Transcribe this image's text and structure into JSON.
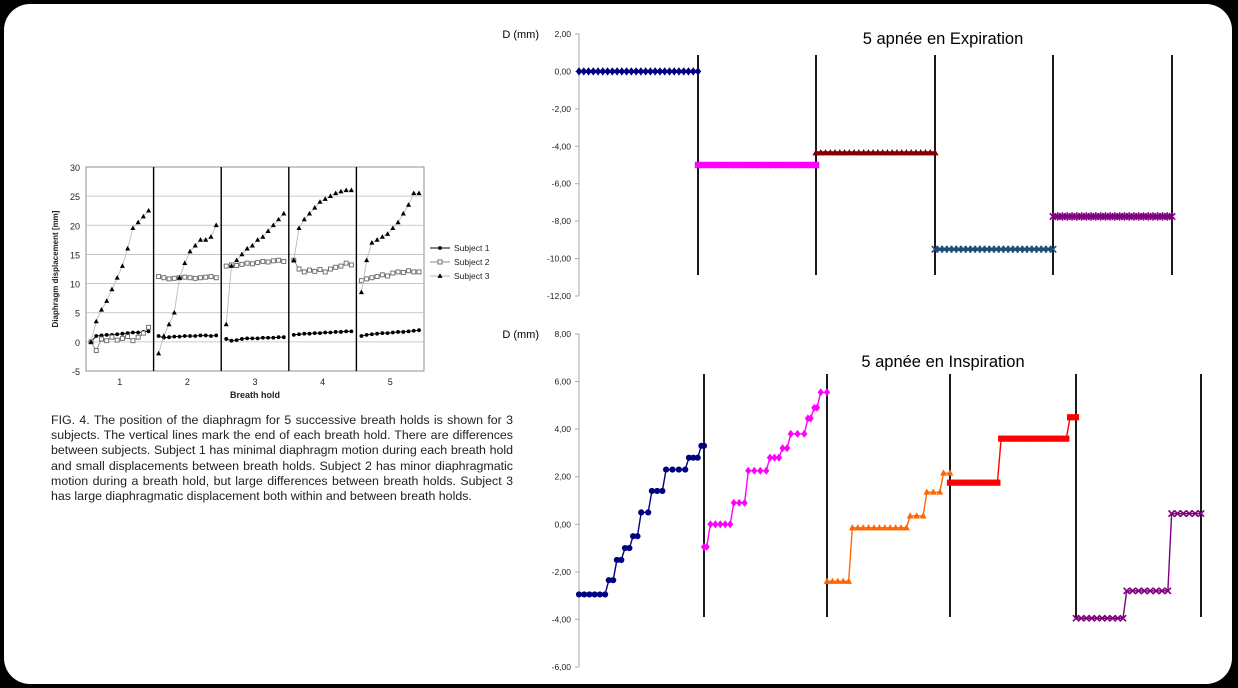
{
  "chart_data": [
    {
      "type": "scatter",
      "xlabel": "Breath hold",
      "ylabel": "Diaphragm displacement [mm]",
      "ylim": [
        -5,
        30
      ],
      "yticks": [
        "-5",
        "0",
        "5",
        "10",
        "15",
        "20",
        "25",
        "30"
      ],
      "categories": [
        "1",
        "2",
        "3",
        "4",
        "5"
      ],
      "legend_position": "right",
      "grid": true,
      "series": [
        {
          "name": "Subject 1",
          "marker": "circle",
          "values": [
            [
              0.0,
              1.0,
              1.1,
              1.2,
              1.2,
              1.3,
              1.4,
              1.5,
              1.6,
              1.6,
              1.7,
              1.8
            ],
            [
              1.0,
              0.7,
              0.8,
              0.9,
              0.9,
              1.0,
              1.0,
              1.0,
              1.1,
              1.1,
              1.0,
              1.1
            ],
            [
              0.5,
              0.2,
              0.3,
              0.5,
              0.6,
              0.6,
              0.6,
              0.7,
              0.7,
              0.7,
              0.8,
              0.8
            ],
            [
              1.2,
              1.3,
              1.4,
              1.4,
              1.5,
              1.5,
              1.6,
              1.6,
              1.7,
              1.7,
              1.8,
              1.8
            ],
            [
              1.0,
              1.2,
              1.3,
              1.4,
              1.5,
              1.5,
              1.6,
              1.7,
              1.7,
              1.8,
              1.9,
              2.0
            ]
          ]
        },
        {
          "name": "Subject 2",
          "marker": "square",
          "values": [
            [
              0.0,
              -1.5,
              0.5,
              0.2,
              0.8,
              0.3,
              0.6,
              0.9,
              0.2,
              0.8,
              1.5,
              2.5
            ],
            [
              11.2,
              11.0,
              10.8,
              10.9,
              11.0,
              11.1,
              11.0,
              10.9,
              11.0,
              11.1,
              11.2,
              11.0
            ],
            [
              13.0,
              13.2,
              13.1,
              13.3,
              13.5,
              13.4,
              13.6,
              13.8,
              13.7,
              13.9,
              14.0,
              13.8
            ],
            [
              14.0,
              12.5,
              12.0,
              12.3,
              12.1,
              12.4,
              12.0,
              12.5,
              12.8,
              13.0,
              13.5,
              13.2
            ],
            [
              10.5,
              10.8,
              11.0,
              11.2,
              11.5,
              11.3,
              11.8,
              12.0,
              11.9,
              12.2,
              12.0,
              12.0
            ]
          ]
        },
        {
          "name": "Subject 3",
          "marker": "triangle",
          "values": [
            [
              0.0,
              3.5,
              5.5,
              7.0,
              9.0,
              11.0,
              13.0,
              16.0,
              19.5,
              20.5,
              21.5,
              22.5
            ],
            [
              -2.0,
              1.0,
              3.0,
              5.0,
              11.0,
              13.5,
              15.5,
              16.5,
              17.5,
              17.5,
              18.0,
              20.0
            ],
            [
              3.0,
              13.0,
              14.0,
              15.0,
              16.0,
              16.5,
              17.5,
              18.0,
              19.0,
              20.0,
              21.0,
              22.0
            ],
            [
              14.0,
              19.5,
              21.0,
              22.0,
              23.0,
              24.0,
              24.5,
              25.0,
              25.5,
              25.8,
              26.0,
              26.0
            ],
            [
              8.5,
              14.0,
              17.0,
              17.5,
              18.0,
              18.5,
              19.5,
              20.5,
              22.0,
              23.5,
              25.5,
              25.5
            ]
          ]
        }
      ]
    },
    {
      "type": "line",
      "title": "5 apnée en Expiration",
      "ylabel": "D (mm)",
      "ylim": [
        -12,
        2
      ],
      "yticks": [
        "2,00",
        "0,00",
        "-2,00",
        "-4,00",
        "-6,00",
        "-8,00",
        "-10,00",
        "-12,00"
      ],
      "series": [
        {
          "segment": 1,
          "color": "#000080",
          "marker": "diamond",
          "values": [
            0.0,
            0.0
          ]
        },
        {
          "segment": 2,
          "color": "#FF00FF",
          "marker": "square",
          "values": [
            -5.0,
            -5.0
          ]
        },
        {
          "segment": 3,
          "color": "#800000",
          "marker": "triangle",
          "values": [
            -4.35,
            -4.35
          ]
        },
        {
          "segment": 4,
          "color": "#1F4E79",
          "marker": "x",
          "values": [
            -9.5,
            -9.5
          ]
        },
        {
          "segment": 5,
          "color": "#800080",
          "marker": "star",
          "values": [
            -7.75,
            -7.75
          ]
        }
      ]
    },
    {
      "type": "line",
      "title": "5 apnée en Inspiration",
      "ylabel": "D (mm)",
      "ylim": [
        -6,
        8
      ],
      "yticks": [
        "8,00",
        "6,00",
        "4,00",
        "2,00",
        "0,00",
        "-2,00",
        "-4,00",
        "-6,00"
      ],
      "series": [
        {
          "segment": 1,
          "color": "#000080",
          "marker": "circle",
          "levels": [
            [
              -2.95,
              0.3
            ],
            [
              -2.35,
              0.05
            ],
            [
              -1.5,
              0.05
            ],
            [
              -1.0,
              0.05
            ],
            [
              -0.5,
              0.05
            ],
            [
              0.5,
              0.08
            ],
            [
              1.4,
              0.12
            ],
            [
              2.3,
              0.22
            ],
            [
              2.8,
              0.1
            ],
            [
              3.3,
              0.03
            ]
          ]
        },
        {
          "segment": 2,
          "color": "#FF00FF",
          "marker": "diamond",
          "levels": [
            [
              -0.95,
              0.03
            ],
            [
              0.0,
              0.22
            ],
            [
              0.9,
              0.12
            ],
            [
              2.25,
              0.2
            ],
            [
              2.8,
              0.1
            ],
            [
              3.2,
              0.05
            ],
            [
              3.8,
              0.15
            ],
            [
              4.45,
              0.03
            ],
            [
              4.9,
              0.03
            ],
            [
              5.55,
              0.07
            ]
          ]
        },
        {
          "segment": 3,
          "color": "#FF6600",
          "marker": "triangle",
          "levels": [
            [
              -2.4,
              0.2
            ],
            [
              -0.15,
              0.5
            ],
            [
              0.35,
              0.12
            ],
            [
              1.35,
              0.12
            ],
            [
              2.15,
              0.06
            ]
          ]
        },
        {
          "segment": 4,
          "color": "#FF0000",
          "marker": "square",
          "levels": [
            [
              1.75,
              0.4
            ],
            [
              3.6,
              0.55
            ],
            [
              4.5,
              0.05
            ]
          ]
        },
        {
          "segment": 5,
          "color": "#800080",
          "marker": "x",
          "levels": [
            [
              -3.95,
              0.4
            ],
            [
              -2.8,
              0.35
            ],
            [
              0.45,
              0.25
            ]
          ]
        }
      ]
    }
  ],
  "caption": "FIG. 4.  The position of the diaphragm for 5 successive breath holds is shown for 3 subjects. The vertical lines mark the end of each breath hold. There are differences between subjects. Subject 1 has minimal diaphragm motion during each breath hold and small displacements between breath holds. Subject 2 has minor diaphragmatic motion during a breath hold, but large differences between breath holds. Subject 3 has large diaphragmatic displacement both within and between breath holds."
}
